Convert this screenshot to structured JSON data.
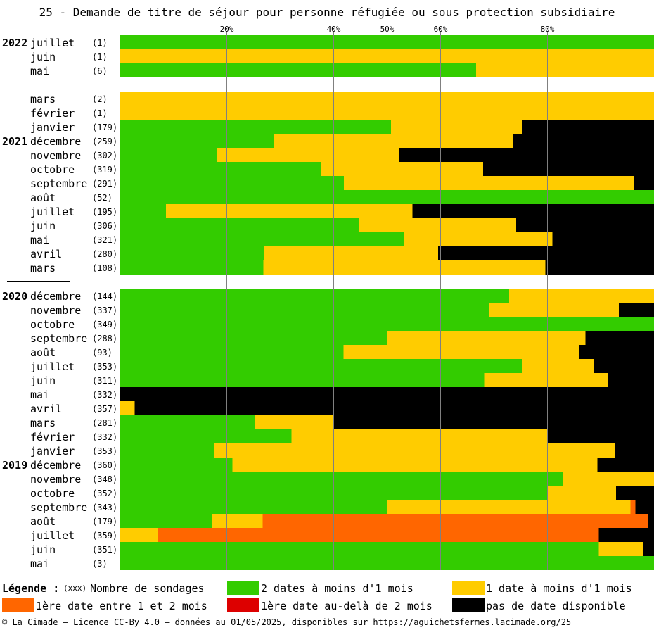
{
  "title": "25 - Demande de titre de séjour pour personne réfugiée ou sous protection subsidiaire",
  "footer": "© La Cimade — Licence CC-By 4.0 — données au 01/05/2025, disponibles sur https://aguichetsfermes.lacimade.org/25",
  "legend": {
    "title": "Légende :",
    "count_note": "(xxx)",
    "count_text": "Nombre de sondages",
    "items": [
      {
        "key": "green",
        "label": "2 dates à moins d'1 mois"
      },
      {
        "key": "yellow",
        "label": "1 date à moins d'1 mois"
      },
      {
        "key": "orange",
        "label": "1ère date entre 1 et 2 mois"
      },
      {
        "key": "red",
        "label": "1ère date au-delà de 2 mois"
      },
      {
        "key": "black",
        "label": "pas de date disponible"
      }
    ]
  },
  "colors": {
    "green": "#33cc00",
    "yellow": "#ffcc00",
    "orange": "#ff6600",
    "red": "#dd0000",
    "black": "#000000",
    "gridline": "#808080"
  },
  "chart_data": {
    "type": "bar",
    "orientation": "horizontal-stacked-100",
    "title": "25 - Demande de titre de séjour pour personne réfugiée ou sous protection subsidiaire",
    "x_ticks": [
      20,
      40,
      50,
      60,
      80
    ],
    "x_tick_labels": [
      "20%",
      "40%",
      "50%",
      "60%",
      "80%"
    ],
    "xlim": [
      0,
      100
    ],
    "series_order": [
      "green",
      "yellow",
      "orange",
      "red",
      "black"
    ],
    "groups": [
      {
        "rows": [
          {
            "year": "2022",
            "month": "juillet",
            "count": "(1)",
            "green": 100,
            "yellow": 0,
            "orange": 0,
            "red": 0,
            "black": 0
          },
          {
            "year": "",
            "month": "juin",
            "count": "(1)",
            "green": 0,
            "yellow": 100,
            "orange": 0,
            "red": 0,
            "black": 0
          },
          {
            "year": "",
            "month": "mai",
            "count": "(6)",
            "green": 66.7,
            "yellow": 33.3,
            "orange": 0,
            "red": 0,
            "black": 0
          }
        ]
      },
      {
        "rows": [
          {
            "year": "",
            "month": "mars",
            "count": "(2)",
            "green": 0,
            "yellow": 100,
            "orange": 0,
            "red": 0,
            "black": 0
          },
          {
            "year": "",
            "month": "février",
            "count": "(1)",
            "green": 0,
            "yellow": 100,
            "orange": 0,
            "red": 0,
            "black": 0
          },
          {
            "year": "",
            "month": "janvier",
            "count": "(179)",
            "green": 50.8,
            "yellow": 24.6,
            "orange": 0,
            "red": 0,
            "black": 24.6
          },
          {
            "year": "2021",
            "month": "décembre",
            "count": "(259)",
            "green": 28.8,
            "yellow": 44.8,
            "orange": 0,
            "red": 0,
            "black": 26.4
          },
          {
            "year": "",
            "month": "novembre",
            "count": "(302)",
            "green": 18.2,
            "yellow": 34.1,
            "orange": 0,
            "red": 0,
            "black": 47.7
          },
          {
            "year": "",
            "month": "octobre",
            "count": "(319)",
            "green": 37.6,
            "yellow": 30.4,
            "orange": 0,
            "red": 0,
            "black": 32.0
          },
          {
            "year": "",
            "month": "septembre",
            "count": "(291)",
            "green": 42.0,
            "yellow": 54.3,
            "orange": 0,
            "red": 0,
            "black": 3.7
          },
          {
            "year": "",
            "month": "août",
            "count": "(52)",
            "green": 100,
            "yellow": 0,
            "orange": 0,
            "red": 0,
            "black": 0
          },
          {
            "year": "",
            "month": "juillet",
            "count": "(195)",
            "green": 8.7,
            "yellow": 46.1,
            "orange": 0,
            "red": 0,
            "black": 45.2
          },
          {
            "year": "",
            "month": "juin",
            "count": "(306)",
            "green": 44.8,
            "yellow": 29.4,
            "orange": 0,
            "red": 0,
            "black": 25.8
          },
          {
            "year": "",
            "month": "mai",
            "count": "(321)",
            "green": 53.3,
            "yellow": 27.7,
            "orange": 0,
            "red": 0,
            "black": 19.0
          },
          {
            "year": "",
            "month": "avril",
            "count": "(280)",
            "green": 27.1,
            "yellow": 32.5,
            "orange": 0,
            "red": 0,
            "black": 40.4
          },
          {
            "year": "",
            "month": "mars",
            "count": "(108)",
            "green": 26.9,
            "yellow": 52.8,
            "orange": 0,
            "red": 0,
            "black": 20.3
          }
        ]
      },
      {
        "rows": [
          {
            "year": "2020",
            "month": "décembre",
            "count": "(144)",
            "green": 72.9,
            "yellow": 27.1,
            "orange": 0,
            "red": 0,
            "black": 0
          },
          {
            "year": "",
            "month": "novembre",
            "count": "(337)",
            "green": 69.1,
            "yellow": 24.3,
            "orange": 0,
            "red": 0,
            "black": 6.6
          },
          {
            "year": "",
            "month": "octobre",
            "count": "(349)",
            "green": 100,
            "yellow": 0,
            "orange": 0,
            "red": 0,
            "black": 0
          },
          {
            "year": "",
            "month": "septembre",
            "count": "(288)",
            "green": 50.0,
            "yellow": 37.2,
            "orange": 0,
            "red": 0,
            "black": 12.8
          },
          {
            "year": "",
            "month": "août",
            "count": "(93)",
            "green": 41.9,
            "yellow": 44.1,
            "orange": 0,
            "red": 0,
            "black": 14.0
          },
          {
            "year": "",
            "month": "juillet",
            "count": "(353)",
            "green": 75.4,
            "yellow": 13.3,
            "orange": 0,
            "red": 0,
            "black": 11.3
          },
          {
            "year": "",
            "month": "juin",
            "count": "(311)",
            "green": 68.2,
            "yellow": 23.1,
            "orange": 0,
            "red": 0,
            "black": 8.7
          },
          {
            "year": "",
            "month": "mai",
            "count": "(332)",
            "green": 0,
            "yellow": 0,
            "orange": 0,
            "red": 0,
            "black": 100
          },
          {
            "year": "",
            "month": "avril",
            "count": "(357)",
            "green": 0,
            "yellow": 2.8,
            "orange": 0,
            "red": 0,
            "black": 97.2
          },
          {
            "year": "",
            "month": "mars",
            "count": "(281)",
            "green": 25.3,
            "yellow": 14.6,
            "orange": 0,
            "red": 0,
            "black": 60.1
          },
          {
            "year": "",
            "month": "février",
            "count": "(332)",
            "green": 32.2,
            "yellow": 47.9,
            "orange": 0,
            "red": 0,
            "black": 19.9
          },
          {
            "year": "",
            "month": "janvier",
            "count": "(353)",
            "green": 17.6,
            "yellow": 75.0,
            "orange": 0,
            "red": 0,
            "black": 7.4
          },
          {
            "year": "2019",
            "month": "décembre",
            "count": "(360)",
            "green": 21.1,
            "yellow": 68.3,
            "orange": 0,
            "red": 0,
            "black": 10.6
          },
          {
            "year": "",
            "month": "novembre",
            "count": "(348)",
            "green": 83.0,
            "yellow": 17.0,
            "orange": 0,
            "red": 0,
            "black": 0
          },
          {
            "year": "",
            "month": "octobre",
            "count": "(352)",
            "green": 80.1,
            "yellow": 12.8,
            "orange": 0,
            "red": 0,
            "black": 7.1
          },
          {
            "year": "",
            "month": "septembre",
            "count": "(343)",
            "green": 50.1,
            "yellow": 45.5,
            "orange": 0.9,
            "red": 0,
            "black": 3.5
          },
          {
            "year": "",
            "month": "août",
            "count": "(179)",
            "green": 17.3,
            "yellow": 9.5,
            "orange": 72.1,
            "red": 0,
            "black": 1.1
          },
          {
            "year": "",
            "month": "juillet",
            "count": "(359)",
            "green": 0,
            "yellow": 7.2,
            "orange": 82.5,
            "red": 0,
            "black": 10.3
          },
          {
            "year": "",
            "month": "juin",
            "count": "(351)",
            "green": 89.7,
            "yellow": 8.3,
            "orange": 0,
            "red": 0,
            "black": 2.0
          },
          {
            "year": "",
            "month": "mai",
            "count": "(3)",
            "green": 100,
            "yellow": 0,
            "orange": 0,
            "red": 0,
            "black": 0
          }
        ]
      }
    ]
  }
}
